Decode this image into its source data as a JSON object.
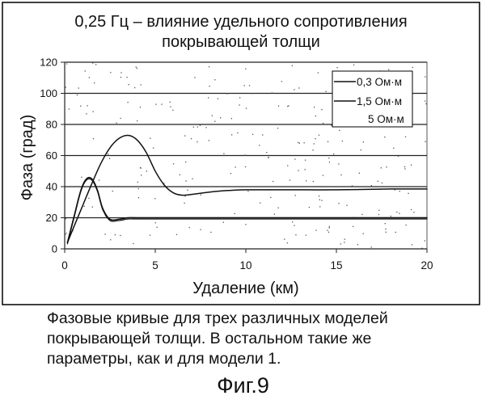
{
  "chart_data": {
    "type": "line",
    "title_lines": [
      "0,25 Гц – влияние удельного сопротивления",
      "покрывающей толщи"
    ],
    "xlabel": "Удаление (км)",
    "ylabel": "Фаза (град)",
    "xlim": [
      0,
      20
    ],
    "ylim": [
      0,
      120
    ],
    "xticks": [
      "0",
      "5",
      "10",
      "15",
      "20"
    ],
    "yticks": [
      "0",
      "20",
      "40",
      "60",
      "80",
      "100",
      "120"
    ],
    "xtick_values": [
      0,
      5,
      10,
      15,
      20
    ],
    "ytick_values": [
      0,
      20,
      40,
      60,
      80,
      100,
      120
    ],
    "grid": "horizontal",
    "legend_position": "top-right",
    "series": [
      {
        "name": "0,3 Ом·м",
        "x": [
          0.15,
          0.5,
          0.9,
          1.2,
          1.5,
          1.8,
          2.1,
          2.5,
          3.0,
          3.5,
          4.0,
          5.0,
          6.0,
          8.0,
          10.0,
          12.0,
          15.0,
          18.0,
          20.0
        ],
        "y": [
          4,
          20,
          38,
          45,
          45,
          38,
          26,
          19,
          19,
          20,
          20,
          20,
          20,
          20,
          20,
          20,
          20,
          20,
          20
        ]
      },
      {
        "name": "1,5 Ом·м",
        "x": [
          0.15,
          0.5,
          1.0,
          1.5,
          2.0,
          2.5,
          3.0,
          3.5,
          4.0,
          4.5,
          5.0,
          5.5,
          6.0,
          6.5,
          7.0,
          8.0,
          9.0,
          10.0,
          12.0,
          15.0,
          18.0,
          20.0
        ],
        "y": [
          4,
          14,
          28,
          42,
          55,
          65,
          71,
          73,
          70,
          62,
          50,
          41,
          36,
          34.5,
          35,
          36.5,
          37.5,
          38,
          38,
          38,
          38.5,
          38.5
        ]
      },
      {
        "name": "5 Ом·м",
        "x": [
          0.15,
          0.5,
          0.9,
          1.2,
          1.5,
          1.8,
          2.1,
          2.5,
          3.0,
          3.5,
          4.0,
          5.0,
          6.0,
          8.0,
          10.0,
          12.0,
          15.0,
          18.0,
          20.0
        ],
        "y": [
          4,
          20,
          38,
          45,
          45,
          38,
          26,
          19,
          19,
          20,
          20,
          20,
          20,
          20,
          20,
          20,
          20,
          20,
          20
        ]
      }
    ]
  },
  "caption_lines": [
    "Фазовые кривые для трех различных моделей",
    "покрывающей толщи. В остальном такие же",
    "параметры, как и для модели 1."
  ],
  "figure_label": "Фиг.9"
}
